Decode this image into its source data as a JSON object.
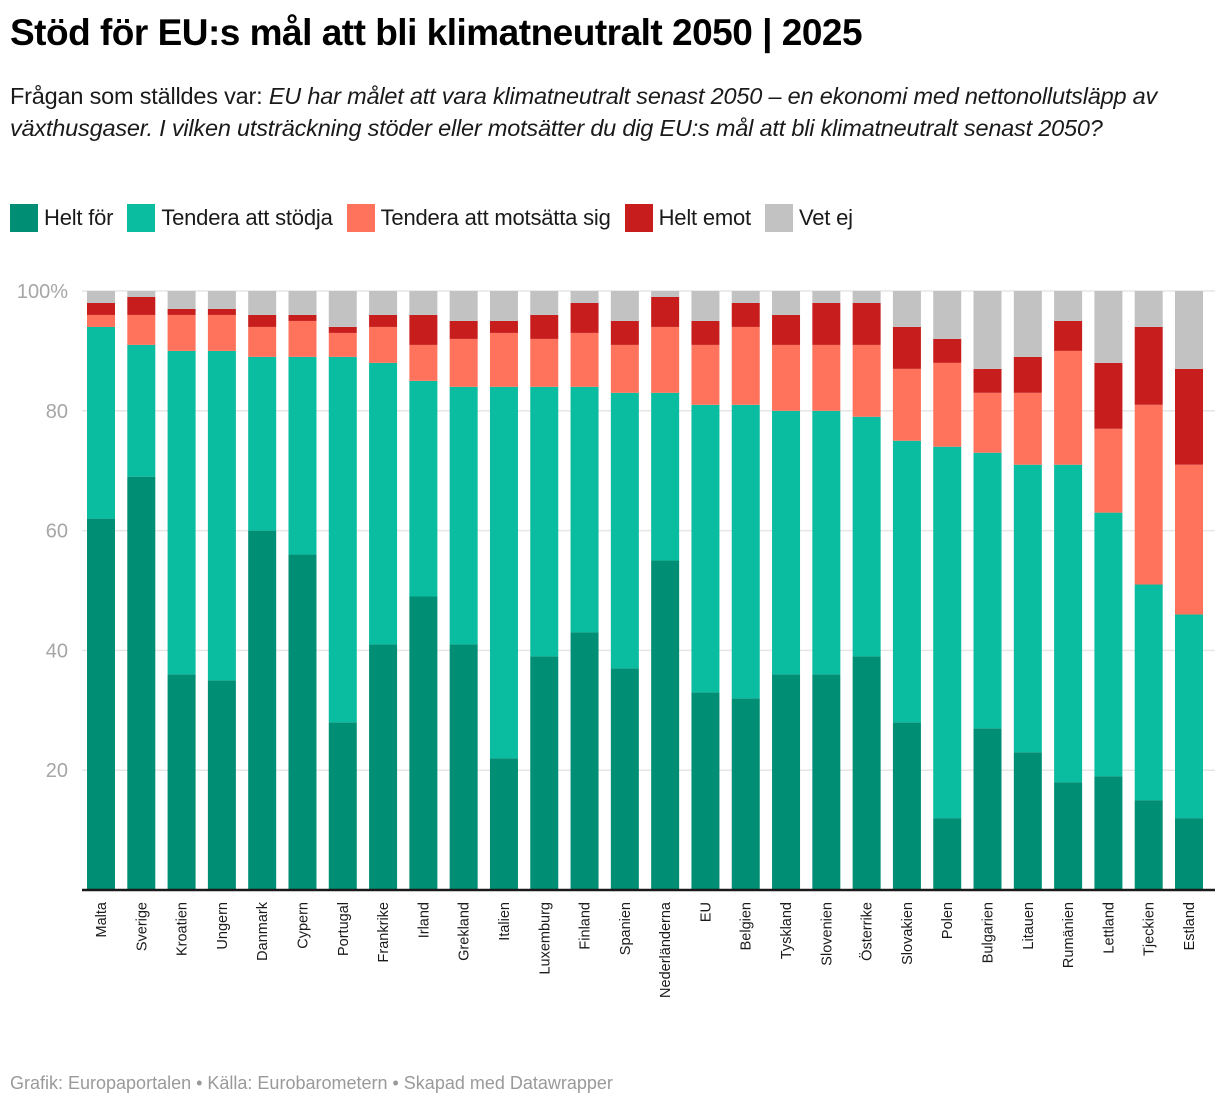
{
  "header": {
    "title": "Stöd för EU:s mål att bli klimatneutralt 2050 | 2025",
    "subtitle_prefix": "Frågan som ställdes var: ",
    "subtitle_italic": "EU har målet att vara klimatneutralt senast 2050 – en ekonomi med nettonollutsläpp av växthusgaser. I vilken utsträckning stöder eller motsätter du dig EU:s mål att bli klimatneutralt senast 2050?"
  },
  "footer": {
    "text": "Grafik: Europaportalen • Källa: Eurobarometern • Skapad med Datawrapper"
  },
  "chart_data": {
    "type": "bar",
    "stacked": true,
    "orientation": "vertical",
    "title": "Stöd för EU:s mål att bli klimatneutralt 2050 | 2025",
    "xlabel": "",
    "ylabel": "",
    "ylim": [
      0,
      100
    ],
    "yticks": [
      20,
      40,
      60,
      80,
      100
    ],
    "ytick_labels": [
      "20",
      "40",
      "60",
      "80",
      "100%"
    ],
    "grid": true,
    "legend_position": "top-left",
    "categories": [
      "Malta",
      "Sverige",
      "Kroatien",
      "Ungern",
      "Danmark",
      "Cypern",
      "Portugal",
      "Frankrike",
      "Irland",
      "Grekland",
      "Italien",
      "Luxemburg",
      "Finland",
      "Spanien",
      "Nederländerna",
      "EU",
      "Belgien",
      "Tyskland",
      "Slovenien",
      "Österrike",
      "Slovakien",
      "Polen",
      "Bulgarien",
      "Litauen",
      "Rumänien",
      "Lettland",
      "Tjeckien",
      "Estland"
    ],
    "series": [
      {
        "name": "Helt för",
        "color": "#008f74",
        "values": [
          62,
          69,
          36,
          35,
          60,
          56,
          28,
          41,
          49,
          41,
          22,
          39,
          43,
          37,
          55,
          33,
          32,
          36,
          36,
          39,
          28,
          12,
          27,
          23,
          18,
          19,
          15,
          12
        ]
      },
      {
        "name": "Tendera att stödja",
        "color": "#0abca0",
        "values": [
          32,
          22,
          54,
          55,
          29,
          33,
          61,
          47,
          36,
          43,
          62,
          45,
          41,
          46,
          28,
          48,
          49,
          44,
          44,
          40,
          47,
          62,
          46,
          48,
          53,
          44,
          36,
          34
        ]
      },
      {
        "name": "Tendera att motsätta sig",
        "color": "#ff735d",
        "values": [
          2,
          5,
          6,
          6,
          5,
          6,
          4,
          6,
          6,
          8,
          9,
          8,
          9,
          8,
          11,
          10,
          13,
          11,
          11,
          12,
          12,
          14,
          10,
          12,
          19,
          14,
          30,
          25
        ]
      },
      {
        "name": "Helt emot",
        "color": "#c71e1d",
        "values": [
          2,
          3,
          1,
          1,
          2,
          1,
          1,
          2,
          5,
          3,
          2,
          4,
          5,
          4,
          5,
          4,
          4,
          5,
          7,
          7,
          7,
          4,
          4,
          6,
          5,
          11,
          13,
          16
        ]
      },
      {
        "name": "Vet ej",
        "color": "#c2c2c2",
        "values": [
          2,
          1,
          3,
          3,
          4,
          4,
          6,
          4,
          4,
          5,
          5,
          4,
          2,
          5,
          1,
          5,
          2,
          4,
          2,
          2,
          6,
          8,
          13,
          11,
          5,
          12,
          6,
          13
        ]
      }
    ]
  }
}
